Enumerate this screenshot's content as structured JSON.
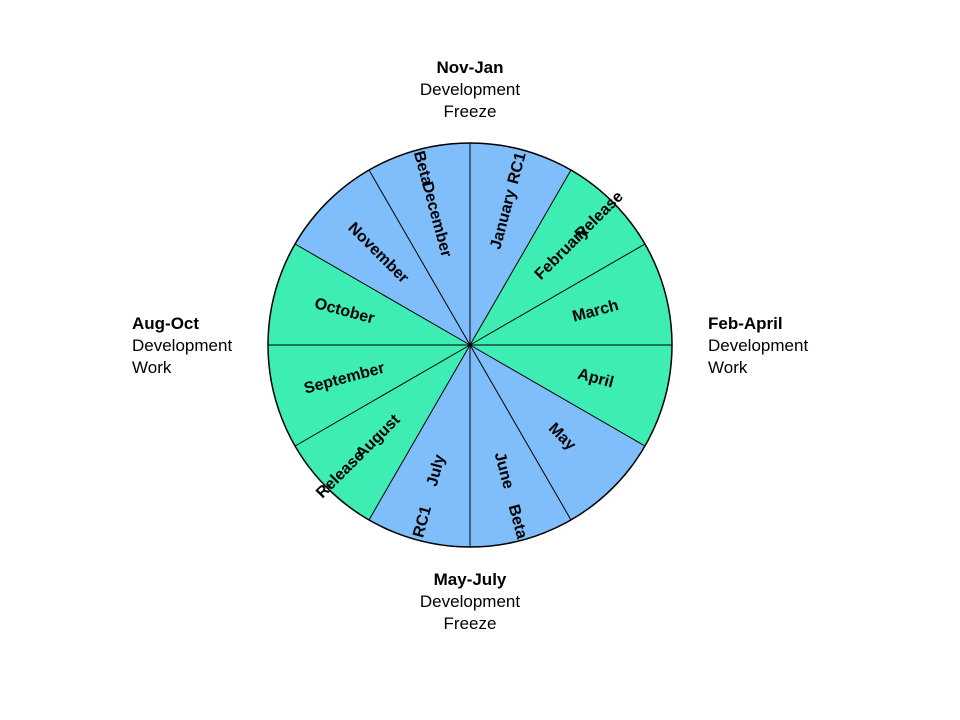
{
  "colors": {
    "development": "#3DEDB4",
    "freeze": "#80BDFB",
    "stroke": "#000000"
  },
  "quadrants": {
    "top": {
      "title": "Nov-Jan",
      "line1": "Development",
      "line2": "Freeze"
    },
    "right": {
      "title": "Feb-April",
      "line1": "Development",
      "line2": "Work"
    },
    "bottom": {
      "title": "May-July",
      "line1": "Development",
      "line2": "Freeze"
    },
    "left": {
      "title": "Aug-Oct",
      "line1": "Development",
      "line2": "Work"
    }
  },
  "months": [
    {
      "month": "January",
      "milestone": "RC1",
      "phase": "freeze"
    },
    {
      "month": "February",
      "milestone": "Release",
      "phase": "development"
    },
    {
      "month": "March",
      "milestone": "",
      "phase": "development"
    },
    {
      "month": "April",
      "milestone": "",
      "phase": "development"
    },
    {
      "month": "May",
      "milestone": "",
      "phase": "freeze"
    },
    {
      "month": "June",
      "milestone": "Beta",
      "phase": "freeze"
    },
    {
      "month": "July",
      "milestone": "RC1",
      "phase": "freeze"
    },
    {
      "month": "August",
      "milestone": "Release",
      "phase": "development"
    },
    {
      "month": "September",
      "milestone": "",
      "phase": "development"
    },
    {
      "month": "October",
      "milestone": "",
      "phase": "development"
    },
    {
      "month": "November",
      "milestone": "",
      "phase": "freeze"
    },
    {
      "month": "December",
      "milestone": "Beta",
      "phase": "freeze"
    }
  ]
}
